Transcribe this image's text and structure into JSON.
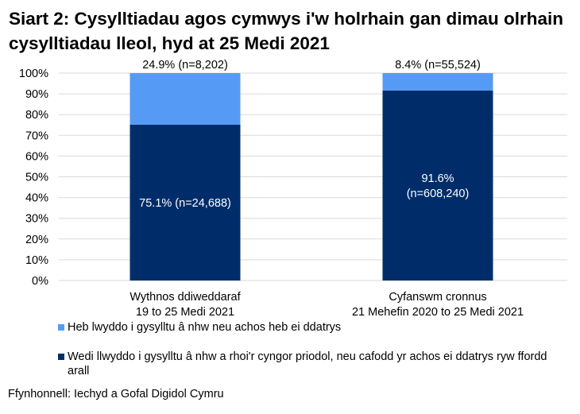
{
  "chart_data": {
    "type": "bar",
    "stacked": true,
    "title": "Siart 2: Cysylltiadau agos cymwys i'w holrhain gan dimau olrhain cysylltiadau lleol, hyd at 25 Medi 2021",
    "categories": [
      [
        "Wythnos ddiweddaraf",
        "19 to 25 Medi 2021"
      ],
      [
        "Cyfanswm cronnus",
        "21 Mehefin 2020 to 25 Medi 2021"
      ]
    ],
    "series": [
      {
        "name": "Wedi llwyddo i gysylltu â nhw a rhoi'r cyngor priodol, neu cafodd yr achos ei ddatrys ryw ffordd arall",
        "values": [
          75.1,
          91.6
        ],
        "color": "#002D6A",
        "labels": [
          [
            "75.1% (n=24,688)"
          ],
          [
            "91.6%",
            "(n=608,240)"
          ]
        ]
      },
      {
        "name": "Heb lwyddo i gysylltu â nhw neu achos heb ei ddatrys",
        "values": [
          24.9,
          8.4
        ],
        "color": "#559BF5",
        "labels": [
          [
            "24.9% (n=8,202)"
          ],
          [
            "8.4% (n=55,524)"
          ]
        ]
      }
    ],
    "ylim": [
      0,
      100
    ],
    "yticks": [
      "0%",
      "10%",
      "20%",
      "30%",
      "40%",
      "50%",
      "60%",
      "70%",
      "80%",
      "90%",
      "100%"
    ],
    "grid": true,
    "legend_placement": "bottom",
    "xlabel": "",
    "ylabel": ""
  },
  "source": "Ffynhonnell: Iechyd a Gofal Digidol Cymru"
}
